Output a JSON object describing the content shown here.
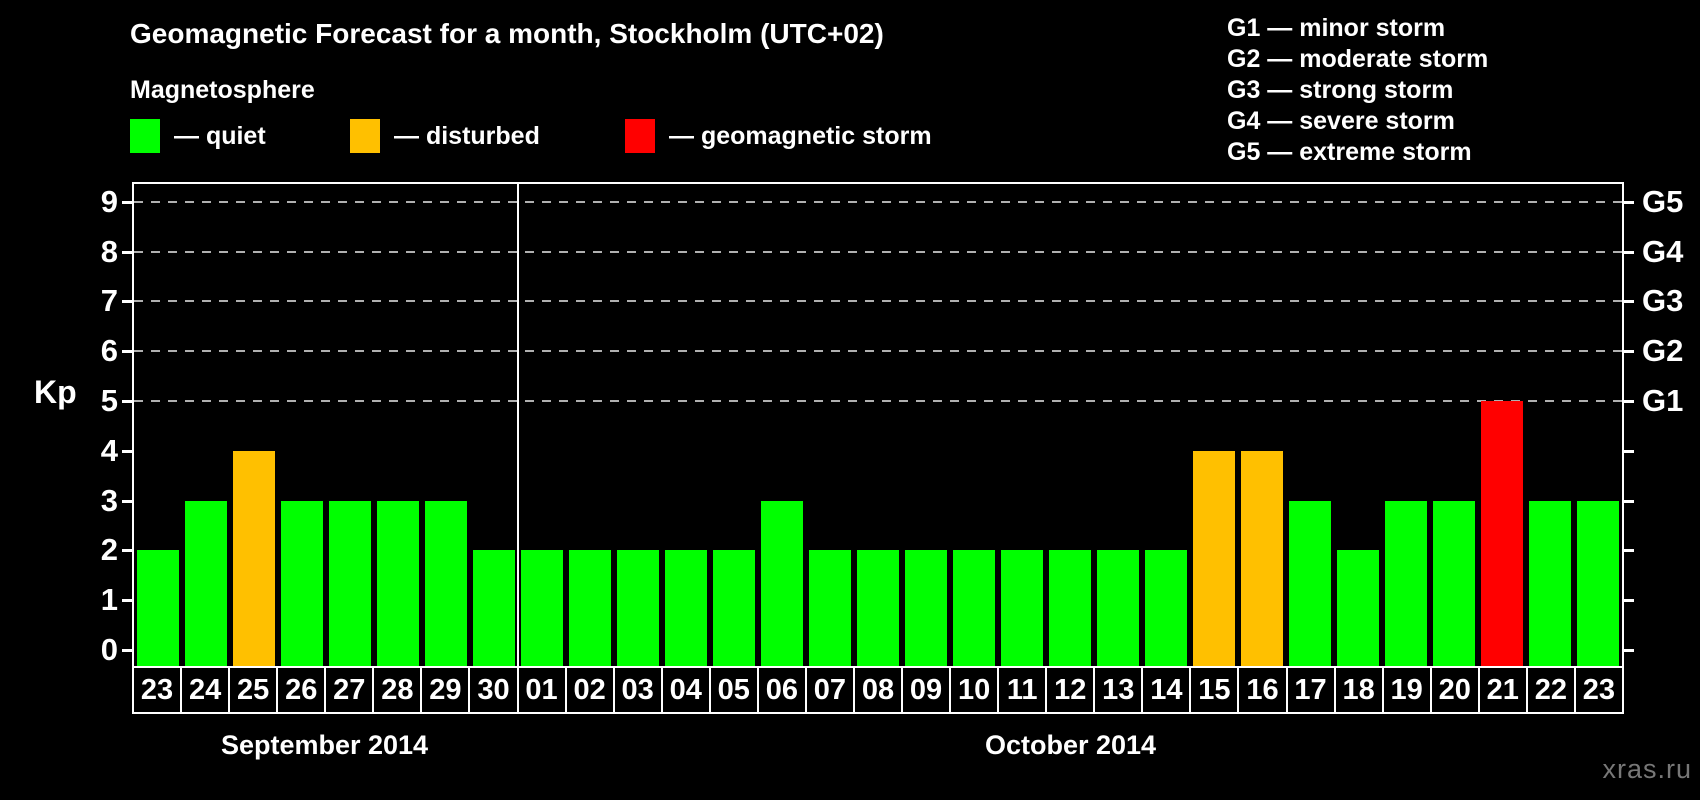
{
  "header": {
    "title": "Geomagnetic Forecast for a month, Stockholm (UTC+02)",
    "subtitle": "Magnetosphere"
  },
  "magnetosphere_legend": [
    {
      "name": "quiet",
      "label": "— quiet",
      "color": "#00ff00"
    },
    {
      "name": "disturbed",
      "label": "— disturbed",
      "color": "#ffc000"
    },
    {
      "name": "storm",
      "label": "— geomagnetic storm",
      "color": "#ff0000"
    }
  ],
  "g_scale_legend": [
    "G1 — minor storm",
    "G2 — moderate storm",
    "G3 — strong storm",
    "G4 — severe storm",
    "G5 — extreme storm"
  ],
  "chart_data": {
    "type": "bar",
    "title": "Geomagnetic Forecast for a month, Stockholm (UTC+02)",
    "ylabel": "Kp",
    "ylim": [
      0,
      9
    ],
    "y_ticks": [
      0,
      1,
      2,
      3,
      4,
      5,
      6,
      7,
      8,
      9
    ],
    "gridlines_kp": [
      5,
      6,
      7,
      8,
      9
    ],
    "grid": "dashed-horizontal-at-storm-levels",
    "legend_position": "top-left",
    "right_axis_labels": [
      {
        "label": "G1",
        "kp": 5
      },
      {
        "label": "G2",
        "kp": 6
      },
      {
        "label": "G3",
        "kp": 7
      },
      {
        "label": "G4",
        "kp": 8
      },
      {
        "label": "G5",
        "kp": 9
      }
    ],
    "months": [
      {
        "label": "September 2014",
        "days": 8
      },
      {
        "label": "October 2014",
        "days": 23
      }
    ],
    "categories": [
      "23",
      "24",
      "25",
      "26",
      "27",
      "28",
      "29",
      "30",
      "01",
      "02",
      "03",
      "04",
      "05",
      "06",
      "07",
      "08",
      "09",
      "10",
      "11",
      "12",
      "13",
      "14",
      "15",
      "16",
      "17",
      "18",
      "19",
      "20",
      "21",
      "22",
      "23"
    ],
    "values": [
      2,
      3,
      4,
      3,
      3,
      3,
      3,
      2,
      2,
      2,
      2,
      2,
      2,
      3,
      2,
      2,
      2,
      2,
      2,
      2,
      2,
      2,
      4,
      4,
      3,
      2,
      3,
      3,
      5,
      3,
      3
    ],
    "statuses": [
      "quiet",
      "quiet",
      "disturbed",
      "quiet",
      "quiet",
      "quiet",
      "quiet",
      "quiet",
      "quiet",
      "quiet",
      "quiet",
      "quiet",
      "quiet",
      "quiet",
      "quiet",
      "quiet",
      "quiet",
      "quiet",
      "quiet",
      "quiet",
      "quiet",
      "quiet",
      "disturbed",
      "disturbed",
      "quiet",
      "quiet",
      "quiet",
      "quiet",
      "storm",
      "quiet",
      "quiet"
    ],
    "colors": {
      "quiet": "#00ff00",
      "disturbed": "#ffc000",
      "storm": "#ff0000"
    }
  },
  "watermark": "xras.ru"
}
